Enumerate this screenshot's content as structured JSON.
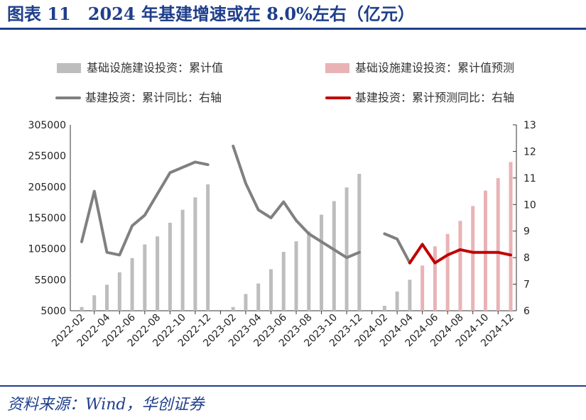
{
  "title": "图表 11　2024 年基建增速或在 8.0%左右（亿元）",
  "source": "资料来源：Wind，华创证券",
  "colors": {
    "title_blue": "#1f3f8c",
    "bar_actual": "#bdbdbd",
    "bar_forecast": "#e9b3b6",
    "line_actual": "#808080",
    "line_forecast": "#c00000"
  },
  "legend": [
    {
      "label": "基础设施建设投资：累计值",
      "kind": "bar",
      "color": "#bdbdbd"
    },
    {
      "label": "基础设施建设投资：累计值预测",
      "kind": "bar",
      "color": "#e9b3b6"
    },
    {
      "label": "基建投资：累计同比：右轴",
      "kind": "line",
      "color": "#808080"
    },
    {
      "label": "基建投资：累计预测同比：右轴",
      "kind": "line",
      "color": "#c00000"
    }
  ],
  "chart_data": {
    "type": "bar",
    "title": "",
    "xlabel": "",
    "ylabel": "",
    "legend_position": "top",
    "grid": false,
    "categories": [
      "2022-02",
      "2022-03",
      "2022-04",
      "2022-05",
      "2022-06",
      "2022-07",
      "2022-08",
      "2022-09",
      "2022-10",
      "2022-11",
      "2022-12",
      "2023-01",
      "2023-02",
      "2023-03",
      "2023-04",
      "2023-05",
      "2023-06",
      "2023-07",
      "2023-08",
      "2023-09",
      "2023-10",
      "2023-11",
      "2023-12",
      "2024-01",
      "2024-02",
      "2024-03",
      "2024-04",
      "2024-05",
      "2024-06",
      "2024-07",
      "2024-08",
      "2024-09",
      "2024-10",
      "2024-11",
      "2024-12"
    ],
    "x_tick_labels": [
      "2022-02",
      "2022-04",
      "2022-06",
      "2022-08",
      "2022-10",
      "2022-12",
      "2023-02",
      "2023-04",
      "2023-06",
      "2023-08",
      "2023-10",
      "2023-12",
      "2024-02",
      "2024-04",
      "2024-06",
      "2024-08",
      "2024-10",
      "2024-12"
    ],
    "y_left": {
      "ylim": [
        5000,
        305000
      ],
      "ticks": [
        "5000",
        "55000",
        "105000",
        "155000",
        "205000",
        "255000",
        "305000"
      ]
    },
    "y_right": {
      "ylim": [
        6,
        13
      ],
      "ticks": [
        "6",
        "7",
        "8",
        "9",
        "10",
        "11",
        "12",
        "13"
      ]
    },
    "series": [
      {
        "name": "基础设施建设投资：累计值",
        "kind": "bar",
        "axis": "left",
        "values": [
          11000,
          30000,
          47000,
          67000,
          90000,
          112000,
          125000,
          147000,
          168000,
          188000,
          209000,
          null,
          11000,
          32000,
          49000,
          72000,
          100000,
          117000,
          133000,
          160000,
          182000,
          204000,
          226000,
          null,
          13000,
          36000,
          55000,
          null,
          null,
          null,
          null,
          null,
          null,
          null,
          null
        ]
      },
      {
        "name": "基础设施建设投资：累计值预测",
        "kind": "bar",
        "axis": "left",
        "values": [
          null,
          null,
          null,
          null,
          null,
          null,
          null,
          null,
          null,
          null,
          null,
          null,
          null,
          null,
          null,
          null,
          null,
          null,
          null,
          null,
          null,
          null,
          null,
          null,
          null,
          null,
          null,
          78000,
          109000,
          129000,
          150000,
          174000,
          199000,
          219000,
          245000
        ]
      },
      {
        "name": "基建投资：累计同比：右轴",
        "kind": "line",
        "axis": "right",
        "values": [
          8.6,
          10.5,
          8.2,
          8.1,
          9.2,
          9.6,
          10.4,
          11.2,
          11.4,
          11.6,
          11.5,
          null,
          12.2,
          10.8,
          9.8,
          9.5,
          10.1,
          9.4,
          8.9,
          8.6,
          8.3,
          8.0,
          8.2,
          null,
          8.9,
          8.7,
          7.8,
          null,
          null,
          null,
          null,
          null,
          null,
          null,
          null
        ]
      },
      {
        "name": "基建投资：累计预测同比：右轴",
        "kind": "line",
        "axis": "right",
        "values": [
          null,
          null,
          null,
          null,
          null,
          null,
          null,
          null,
          null,
          null,
          null,
          null,
          null,
          null,
          null,
          null,
          null,
          null,
          null,
          null,
          null,
          null,
          null,
          null,
          null,
          null,
          7.8,
          8.5,
          7.8,
          8.1,
          8.3,
          8.2,
          8.2,
          8.2,
          8.1
        ]
      }
    ]
  }
}
